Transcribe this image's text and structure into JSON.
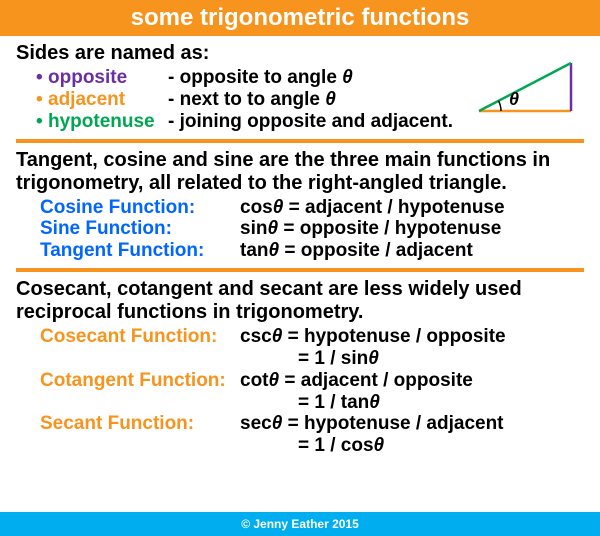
{
  "colors": {
    "orange": "#f7941d",
    "blue_footer": "#00aeef",
    "purple": "#6b2fa3",
    "green": "#00a651",
    "func_orange": "#f7941d",
    "func_blue": "#0066ff",
    "black": "#000000"
  },
  "title": "some trigonometric functions",
  "sides": {
    "heading": "Sides are named as:",
    "items": [
      {
        "term": "opposite",
        "color": "#6b2fa3",
        "def": "- opposite to angle θ"
      },
      {
        "term": "adjacent",
        "color": "#f7941d",
        "def": "- next to to angle θ"
      },
      {
        "term": "hypotenuse",
        "color": "#00a651",
        "def": "- joining opposite and adjacent."
      }
    ]
  },
  "triangle": {
    "opposite_color": "#6b2fa3",
    "adjacent_color": "#f7941d",
    "hypotenuse_color": "#00a651",
    "theta_label": "θ",
    "width": 100,
    "height": 56
  },
  "main_intro": "Tangent, cosine and sine are the three main functions in trigonometry, all related to the right-angled triangle.",
  "main_funcs": [
    {
      "name": "Cosine Function:",
      "eq": "cosθ = adjacent / hypotenuse"
    },
    {
      "name": "Sine Function:",
      "eq": "sinθ  = opposite / hypotenuse"
    },
    {
      "name": "Tangent Function:",
      "eq": "tanθ  = opposite / adjacent"
    }
  ],
  "recip_intro": "Cosecant, cotangent and secant are less widely used reciprocal functions in trigonometry.",
  "recip_funcs": [
    {
      "name": "Cosecant Function:",
      "eq": "cscθ = hypotenuse / opposite",
      "eq2": "= 1 / sinθ"
    },
    {
      "name": "Cotangent Function:",
      "eq": "cotθ = adjacent / opposite",
      "eq2": "= 1 / tanθ"
    },
    {
      "name": "Secant Function:",
      "eq": "secθ = hypotenuse / adjacent",
      "eq2": "= 1 / cosθ"
    }
  ],
  "footer": "© Jenny Eather 2015"
}
